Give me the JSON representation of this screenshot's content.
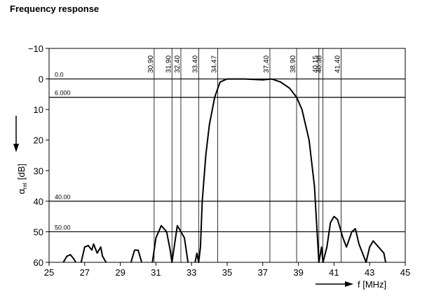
{
  "chart_data": {
    "type": "line",
    "title": "Frequency response",
    "x_label": "f [MHz]",
    "y_label": {
      "symbol": "α",
      "subscript": "rel",
      "unit": "[dB]"
    },
    "xlim": [
      25,
      45
    ],
    "xticks": [
      25,
      27,
      29,
      31,
      33,
      35,
      37,
      39,
      41,
      43,
      45
    ],
    "ylim": [
      -10,
      60
    ],
    "yticks": [
      {
        "value": -10,
        "label": "−10"
      },
      0,
      10,
      20,
      30,
      40,
      50,
      60
    ],
    "y_inverted": true,
    "color": "#000000",
    "x": [
      25.8,
      26.0,
      26.2,
      26.4,
      26.5,
      null,
      26.8,
      27.0,
      27.2,
      27.4,
      27.5,
      27.7,
      27.9,
      28.0,
      28.2,
      null,
      29.6,
      29.8,
      30.0,
      30.2,
      null,
      30.8,
      31.0,
      31.3,
      31.6,
      31.8,
      31.9,
      32.0,
      32.2,
      32.4,
      32.6,
      32.8,
      null,
      33.2,
      33.3,
      33.4,
      33.5,
      33.6,
      33.8,
      34.0,
      34.3,
      34.6,
      35.0,
      36.0,
      37.0,
      37.5,
      38.0,
      38.5,
      38.9,
      39.2,
      39.6,
      39.9,
      40.0,
      40.1,
      40.15,
      40.3,
      40.38,
      40.6,
      40.8,
      41.0,
      41.2,
      41.5,
      41.7,
      42.0,
      42.2,
      42.4,
      42.6,
      42.8,
      43.0,
      43.2,
      43.5,
      43.8,
      43.9
    ],
    "values": [
      60,
      58,
      57.5,
      59,
      60,
      null,
      60,
      55,
      54.5,
      56,
      54,
      57,
      55,
      58,
      60,
      null,
      60,
      56,
      56,
      60,
      null,
      60,
      52,
      48,
      50,
      56,
      60,
      56,
      48,
      50,
      52,
      60,
      null,
      60,
      57,
      60,
      55,
      40,
      25,
      15,
      6,
      1,
      0,
      0,
      0.3,
      0,
      1,
      3,
      6,
      10,
      20,
      35,
      45,
      55,
      60,
      55,
      60,
      55,
      47,
      45,
      46,
      52,
      55,
      50,
      49,
      54,
      57,
      60,
      55,
      53,
      55,
      57,
      60
    ],
    "reference_lines_y": [
      {
        "value": 0,
        "label": "0.0"
      },
      {
        "value": 6,
        "label": "6.000"
      },
      {
        "value": 40,
        "label": "40.00"
      },
      {
        "value": 50,
        "label": "50.00"
      }
    ],
    "reference_lines_x": [
      {
        "value": 30.9,
        "label": "30.90"
      },
      {
        "value": 31.9,
        "label": "31.90"
      },
      {
        "value": 32.4,
        "label": "32.40"
      },
      {
        "value": 33.4,
        "label": "33.40"
      },
      {
        "value": 34.47,
        "label": "34.47"
      },
      {
        "value": 37.4,
        "label": "37.40"
      },
      {
        "value": 38.9,
        "label": "38.90"
      },
      {
        "value": 40.15,
        "label": "40.15"
      },
      {
        "value": 40.38,
        "label": "40.38"
      },
      {
        "value": 41.4,
        "label": "41.40"
      }
    ]
  }
}
